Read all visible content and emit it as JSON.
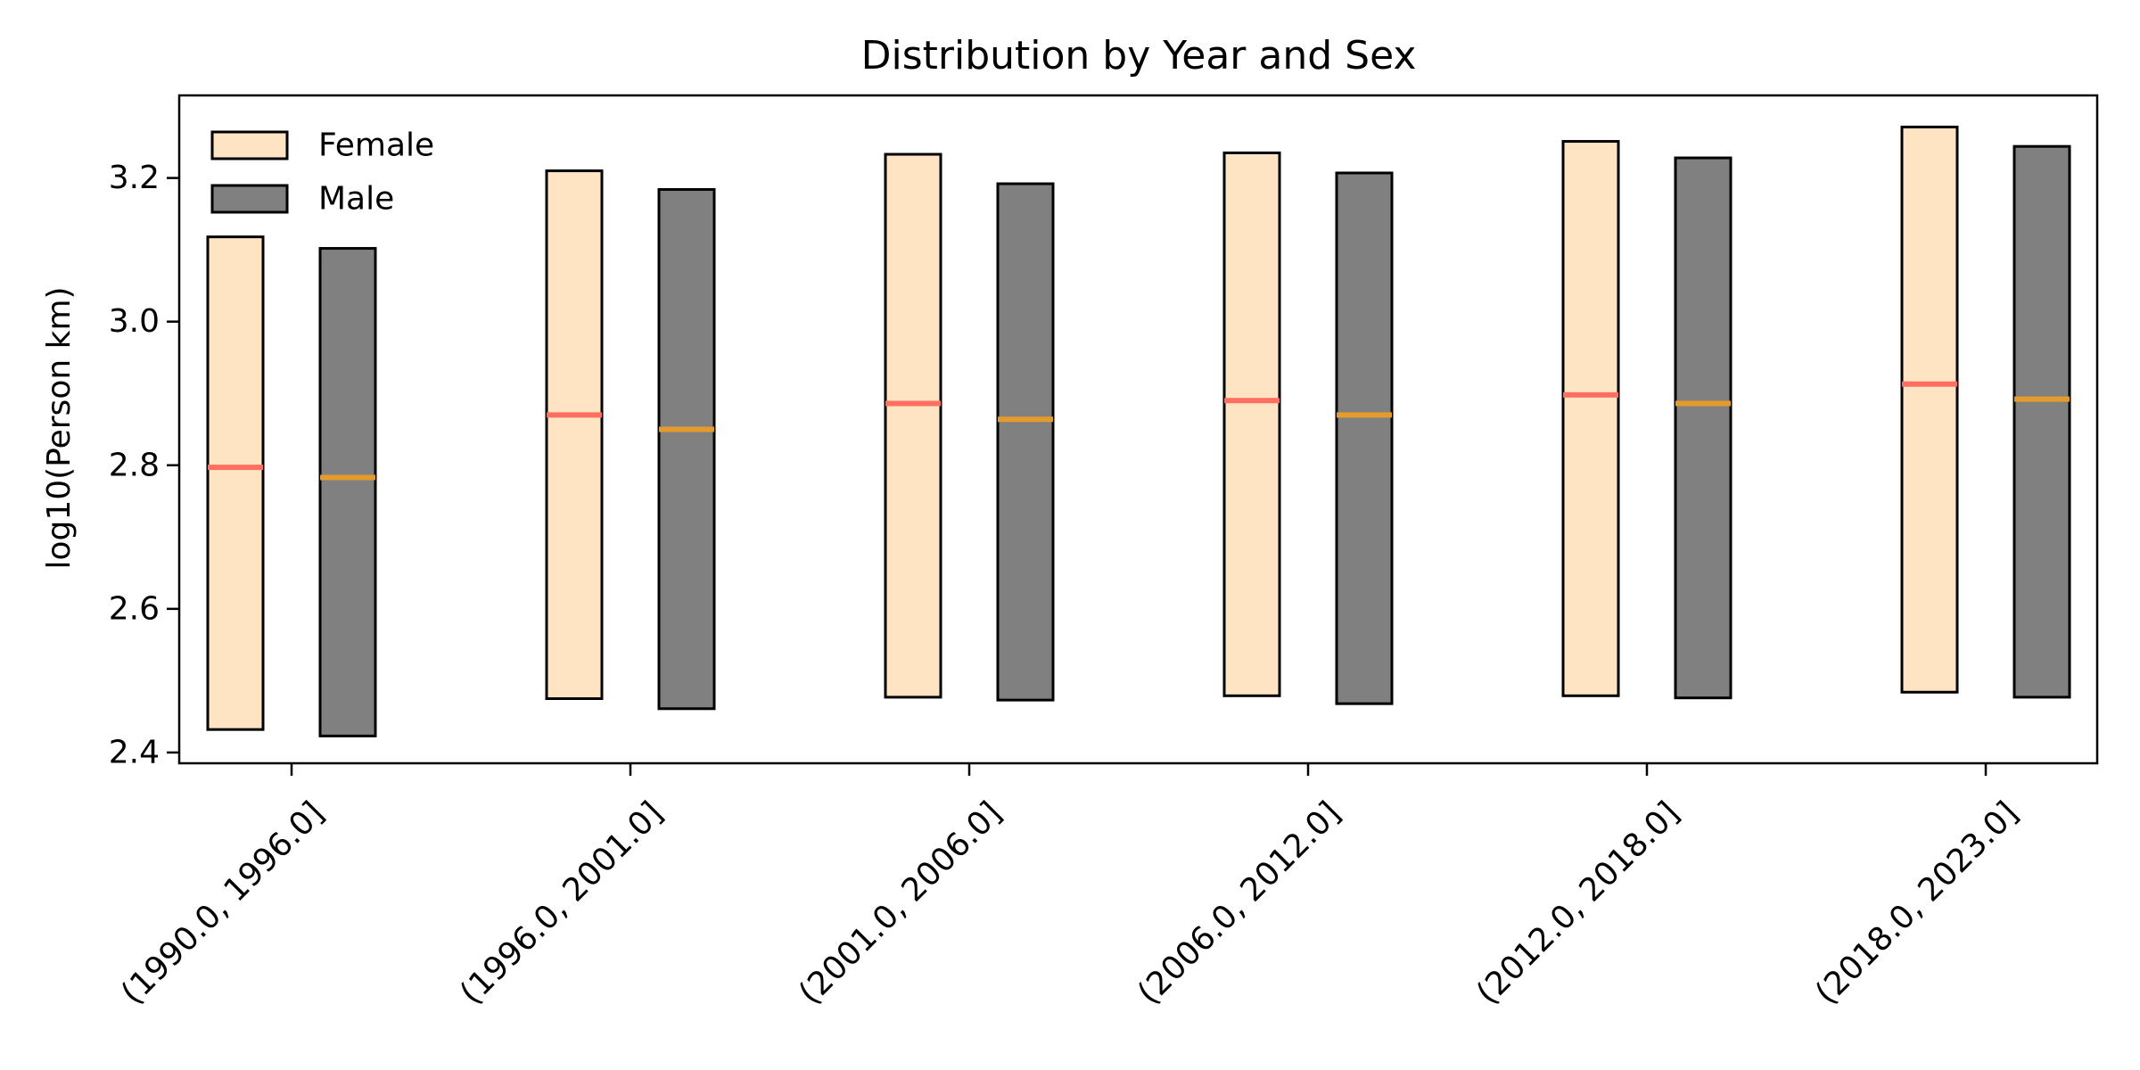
{
  "chart_data": {
    "type": "bar",
    "chart_subtype": "floating-range-bar-with-median",
    "title": "Distribution by Year and Sex",
    "xlabel": "",
    "ylabel": "log10(Person km)",
    "categories": [
      "(1990.0, 1996.0]",
      "(1996.0, 2001.0]",
      "(2001.0, 2006.0]",
      "(2006.0, 2012.0]",
      "(2012.0, 2018.0]",
      "(2018.0, 2023.0]"
    ],
    "ylim": [
      2.385,
      3.315
    ],
    "yticks": [
      2.4,
      2.6,
      2.8,
      3.0,
      3.2
    ],
    "ytick_labels": [
      "2.4",
      "2.6",
      "2.8",
      "3.0",
      "3.2"
    ],
    "grid": false,
    "legend_position": "top-left",
    "series": [
      {
        "name": "Female",
        "fill_color": "#ffe4c4",
        "median_color": "#ff6f61",
        "low": [
          2.432,
          2.475,
          2.477,
          2.479,
          2.479,
          2.484
        ],
        "high": [
          3.118,
          3.21,
          3.233,
          3.235,
          3.251,
          3.271
        ],
        "median": [
          2.797,
          2.87,
          2.886,
          2.89,
          2.898,
          2.913
        ]
      },
      {
        "name": "Male",
        "fill_color": "#808080",
        "median_color": "#e49b2c",
        "low": [
          2.423,
          2.461,
          2.473,
          2.468,
          2.476,
          2.477
        ],
        "high": [
          3.102,
          3.184,
          3.192,
          3.207,
          3.228,
          3.244
        ],
        "median": [
          2.783,
          2.85,
          2.864,
          2.87,
          2.886,
          2.892
        ]
      }
    ]
  }
}
